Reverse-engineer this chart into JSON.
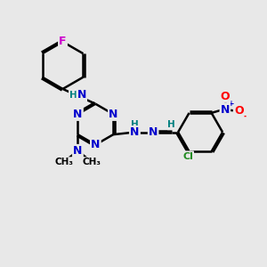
{
  "bg_color": "#e8e8e8",
  "bond_color": "#000000",
  "bond_width": 1.8,
  "atom_colors": {
    "N": "#0000cd",
    "H": "#008080",
    "F": "#cc00cc",
    "Cl": "#228B22",
    "O": "#ff0000",
    "N_no2": "#0000cd",
    "C": "#000000"
  },
  "font_size_atom": 9,
  "font_size_small": 7.5,
  "figsize": [
    3.0,
    3.0
  ],
  "dpi": 100,
  "xlim": [
    0,
    10
  ],
  "ylim": [
    0,
    10
  ]
}
